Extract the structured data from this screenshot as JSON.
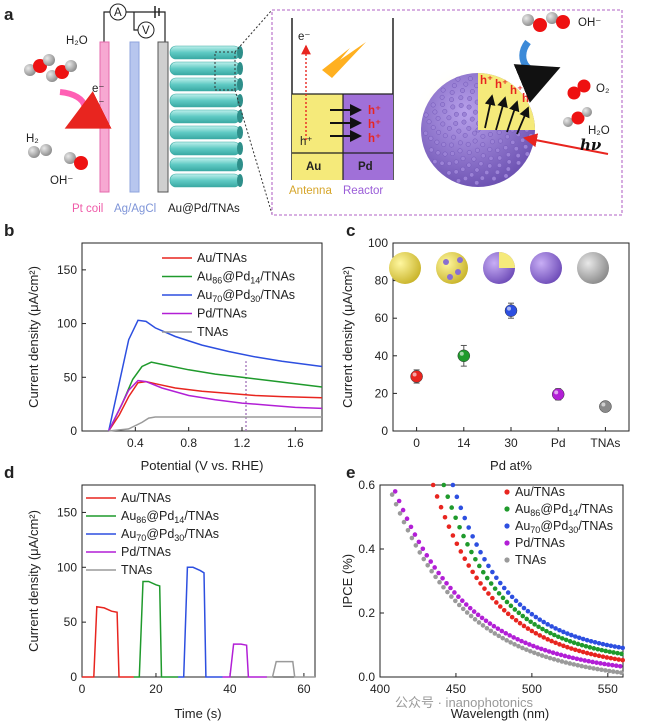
{
  "panel_labels": {
    "a": "a",
    "b": "b",
    "c": "c",
    "d": "d",
    "e": "e"
  },
  "schematic": {
    "left_labels": {
      "h2o": "H₂O",
      "h2": "H₂",
      "ohm": "OH⁻",
      "electrons": [
        "e⁻",
        "e⁻",
        "e⁻"
      ],
      "meter_a": "A",
      "meter_v": "V",
      "pt_coil": "Pt coil",
      "ag_agcl": "Ag/AgCl",
      "electrode": "Au@Pd/TNAs"
    },
    "inset": {
      "e_minus": "e⁻",
      "h_plus": [
        "h⁺",
        "h⁺",
        "h⁺",
        "h⁺"
      ],
      "au": "Au",
      "pd": "Pd",
      "antenna": "Antenna",
      "reactor": "Reactor",
      "ohm": "OH⁻",
      "o2": "O₂",
      "h2o": "H₂O",
      "hv": "hν",
      "sphere_h": [
        "h⁺",
        "h⁺",
        "h⁺",
        "h⁺"
      ]
    },
    "colors": {
      "pt": "#f48fc8",
      "agagcl": "#a8b8e8",
      "tnas": "#6fd1cc",
      "au": "#f5ea7a",
      "pd": "#a070d8",
      "sphere": "#8b6fc8",
      "inset_border": "#c080d0"
    }
  },
  "chart_data": [
    {
      "id": "b",
      "type": "line",
      "xlabel": "Potential (V vs. RHE)",
      "ylabel": "Current density (μA/cm²)",
      "xlim": [
        0.0,
        1.8
      ],
      "ylim": [
        0,
        175
      ],
      "xticks": [
        0.4,
        0.8,
        1.2,
        1.6
      ],
      "xtick_labels": [
        "0.4",
        "0.8",
        "1.2",
        "1.6"
      ],
      "yticks": [
        0,
        50,
        100,
        150
      ],
      "ytick_labels": [
        "0",
        "50",
        "100",
        "150"
      ],
      "legend": "top-right",
      "series": [
        {
          "name": "Au/TNAs",
          "sub_name": "",
          "color": "#e8251f",
          "x": [
            0.2,
            0.28,
            0.35,
            0.42,
            0.48,
            0.55,
            0.7,
            0.9,
            1.1,
            1.3,
            1.5,
            1.8
          ],
          "y": [
            0,
            15,
            32,
            45,
            46,
            44,
            40,
            37,
            35,
            33,
            32,
            31
          ]
        },
        {
          "name": "Au@Pd/TNAs (86/14)",
          "name_parts": [
            "Au",
            "86",
            "@Pd",
            "14",
            "/TNAs"
          ],
          "color": "#1f9a2c",
          "x": [
            0.2,
            0.3,
            0.38,
            0.45,
            0.52,
            0.6,
            0.8,
            1.0,
            1.2,
            1.4,
            1.6,
            1.8
          ],
          "y": [
            0,
            25,
            48,
            60,
            64,
            62,
            57,
            53,
            50,
            47,
            44,
            41
          ]
        },
        {
          "name": "Au@Pd/TNAs (70/30)",
          "name_parts": [
            "Au",
            "70",
            "@Pd",
            "30",
            "/TNAs"
          ],
          "color": "#2d4fe0",
          "x": [
            0.2,
            0.28,
            0.35,
            0.42,
            0.48,
            0.55,
            0.7,
            0.9,
            1.1,
            1.3,
            1.5,
            1.8
          ],
          "y": [
            0,
            45,
            85,
            103,
            102,
            96,
            88,
            80,
            74,
            69,
            65,
            60
          ]
        },
        {
          "name": "Pd/TNAs",
          "sub_name": "",
          "color": "#b21fd6",
          "x": [
            0.2,
            0.28,
            0.35,
            0.42,
            0.48,
            0.6,
            0.8,
            1.0,
            1.2,
            1.4,
            1.6,
            1.8
          ],
          "y": [
            0,
            20,
            38,
            47,
            46,
            40,
            33,
            29,
            26,
            24,
            22,
            21
          ]
        },
        {
          "name": "TNAs",
          "sub_name": "",
          "color": "#9a9a9a",
          "x": [
            0.2,
            0.35,
            0.45,
            0.5,
            0.55,
            0.6,
            0.8,
            1.0,
            1.2,
            1.4,
            1.6,
            1.8
          ],
          "y": [
            0,
            2,
            8,
            12,
            13,
            13,
            13,
            13,
            13,
            13,
            13,
            13
          ]
        }
      ],
      "annotation_line_x": 1.23
    },
    {
      "id": "c",
      "type": "scatter",
      "xlabel": "Pd at%",
      "ylabel": "Current density (μA/cm²)",
      "categories": [
        "0",
        "14",
        "30",
        "Pd",
        "TNAs"
      ],
      "ylim": [
        0,
        100
      ],
      "yticks": [
        0,
        20,
        40,
        60,
        80,
        100
      ],
      "ytick_labels": [
        "0",
        "20",
        "40",
        "60",
        "80",
        "100"
      ],
      "values": [
        29,
        40,
        64,
        19.5,
        13
      ],
      "errors": [
        3.5,
        5.5,
        4,
        3,
        1.5
      ],
      "colors": [
        "#e8251f",
        "#1f9a2c",
        "#2d4fe0",
        "#b21fd6",
        "#8a8a8a"
      ]
    },
    {
      "id": "d",
      "type": "line",
      "xlabel": "Time (s)",
      "ylabel": "Current density (μA/cm²)",
      "xlim": [
        0,
        63
      ],
      "ylim": [
        0,
        175
      ],
      "xticks": [
        0,
        20,
        40,
        60
      ],
      "xtick_labels": [
        "0",
        "20",
        "40",
        "60"
      ],
      "yticks": [
        0,
        50,
        100,
        150
      ],
      "ytick_labels": [
        "0",
        "50",
        "100",
        "150"
      ],
      "legend": "top-left",
      "series": [
        {
          "name": "Au/TNAs",
          "color": "#e8251f",
          "x": [
            0,
            3.2,
            4,
            6,
            8,
            9.5,
            10,
            14
          ],
          "y": [
            0,
            0,
            64,
            63,
            60,
            59,
            0,
            0
          ]
        },
        {
          "name": "Au@Pd/TNAs (86/14)",
          "name_parts": [
            "Au",
            "86",
            "@Pd",
            "14",
            "/TNAs"
          ],
          "color": "#1f9a2c",
          "x": [
            14,
            15.5,
            16.5,
            18,
            20,
            21,
            21.5,
            26
          ],
          "y": [
            0,
            0,
            87,
            87,
            84,
            83,
            0,
            0
          ]
        },
        {
          "name": "Au@Pd/TNAs (70/30)",
          "name_parts": [
            "Au",
            "70",
            "@Pd",
            "30",
            "/TNAs"
          ],
          "color": "#2d4fe0",
          "x": [
            26,
            27.5,
            28.5,
            30,
            32,
            33,
            33.5,
            38
          ],
          "y": [
            0,
            0,
            100,
            100,
            97,
            95,
            0,
            0
          ]
        },
        {
          "name": "Pd/TNAs",
          "color": "#b21fd6",
          "x": [
            38,
            40,
            41,
            43,
            44.5,
            45,
            50
          ],
          "y": [
            0,
            0,
            30,
            30,
            29,
            0,
            0
          ]
        },
        {
          "name": "TNAs",
          "color": "#9a9a9a",
          "x": [
            50,
            51.5,
            52.5,
            55,
            57,
            57.5,
            63
          ],
          "y": [
            0,
            0,
            14,
            14,
            14,
            0,
            0
          ]
        }
      ]
    },
    {
      "id": "e",
      "type": "scatter",
      "xlabel": "Wavelength (nm)",
      "ylabel": "IPCE (%)",
      "xlim": [
        400,
        560
      ],
      "ylim": [
        0,
        0.6
      ],
      "xticks": [
        400,
        450,
        500,
        550
      ],
      "xtick_labels": [
        "400",
        "450",
        "500",
        "550"
      ],
      "yticks": [
        0,
        0.2,
        0.4,
        0.6
      ],
      "ytick_labels": [
        "0.0",
        "0.2",
        "0.4",
        "0.6"
      ],
      "legend": "top-right",
      "series": [
        {
          "name": "Au/TNAs",
          "color": "#e8251f",
          "x0": 435,
          "x1": 560,
          "y0": 0.6,
          "y1": 0.05,
          "k": 0.035
        },
        {
          "name": "Au@Pd/TNAs (86/14)",
          "name_parts": [
            "Au",
            "86",
            "@Pd",
            "14",
            "/TNAs"
          ],
          "color": "#1f9a2c",
          "x0": 442,
          "x1": 560,
          "y0": 0.6,
          "y1": 0.07,
          "k": 0.033
        },
        {
          "name": "Au@Pd/TNAs (70/30)",
          "name_parts": [
            "Au",
            "70",
            "@Pd",
            "30",
            "/TNAs"
          ],
          "color": "#2d4fe0",
          "x0": 448,
          "x1": 560,
          "y0": 0.6,
          "y1": 0.09,
          "k": 0.03
        },
        {
          "name": "Pd/TNAs",
          "color": "#b21fd6",
          "x0": 410,
          "x1": 560,
          "y0": 0.58,
          "y1": 0.03,
          "k": 0.036
        },
        {
          "name": "TNAs",
          "color": "#9a9a9a",
          "x0": 408,
          "x1": 560,
          "y0": 0.57,
          "y1": 0.01,
          "k": 0.04
        }
      ]
    }
  ],
  "watermark": "公众号 · inanophotonics"
}
